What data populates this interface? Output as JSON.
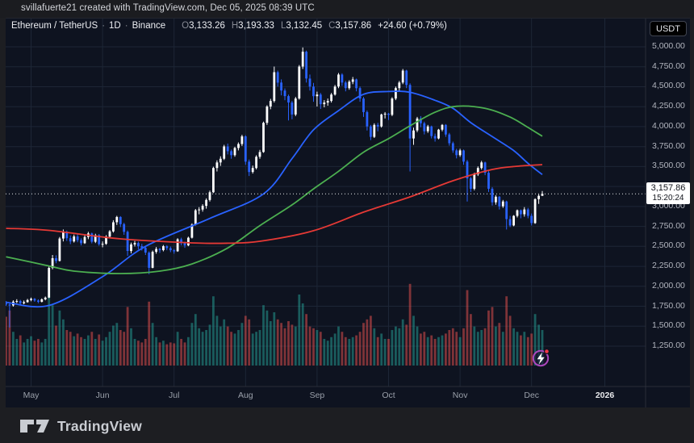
{
  "attribution": {
    "text": "svillafuerte21 created with TradingView.com, Dec 05, 2025 08:39 UTC"
  },
  "legend": {
    "symbol": "Ethereum / TetherUS",
    "separator": "·",
    "interval": "1D",
    "exchange": "Binance",
    "ohlc": [
      {
        "k": "O",
        "v": "3,133.26"
      },
      {
        "k": "H",
        "v": "3,193.33"
      },
      {
        "k": "L",
        "v": "3,132.45"
      },
      {
        "k": "C",
        "v": "3,157.86"
      }
    ],
    "change": "+24.60 (+0.79%)"
  },
  "currency_button": {
    "label": "USDT"
  },
  "price_axis": {
    "labels": [
      "5,000.00",
      "4,750.00",
      "4,500.00",
      "4,250.00",
      "4,000.00",
      "3,750.00",
      "3,500.00",
      "3,250.00",
      "3,000.00",
      "2,750.00",
      "2,500.00",
      "2,250.00",
      "2,000.00",
      "1,750.00",
      "1,500.00",
      "1,250.00"
    ],
    "price_label": {
      "price": "3,157.86",
      "countdown": "15:20:24"
    }
  },
  "time_axis": {
    "ticks": [
      {
        "label": "May",
        "i": 7
      },
      {
        "label": "Jun",
        "i": 27
      },
      {
        "label": "Jul",
        "i": 47
      },
      {
        "label": "Aug",
        "i": 67
      },
      {
        "label": "Sep",
        "i": 87
      },
      {
        "label": "Oct",
        "i": 107
      },
      {
        "label": "Nov",
        "i": 127
      },
      {
        "label": "Dec",
        "i": 147
      },
      {
        "label": "2026",
        "i": 167.5,
        "bold": true
      }
    ]
  },
  "footer": {
    "brand": "TradingView"
  },
  "chart_data": {
    "type": "candlestick",
    "title": "Ethereum / TetherUS 1D Binance",
    "price_range": {
      "min": 1250,
      "max": 5000,
      "step": 250
    },
    "current_price": 3157.86,
    "current_ohlc": {
      "open": 3133.26,
      "high": 3193.33,
      "low": 3132.45,
      "close": 3157.86,
      "change": 24.6,
      "change_pct": 0.79
    },
    "colors": {
      "up": "#ffffff",
      "down": "#2962ff",
      "vol_up": "rgba(38,166,154,0.5)",
      "vol_down": "rgba(239,83,80,0.5)",
      "ma_fast": "#2962ff",
      "ma_mid": "#4caf50",
      "ma_slow": "#e53935",
      "grid": "#1d2636",
      "axis_border": "#2a2e39",
      "price_line": "#e8e9ea",
      "flash_ring": "#ab47bc",
      "flash_dot": "#f23645",
      "background": "#0e1320"
    },
    "candles": [
      [
        1795,
        1815,
        1755,
        1772
      ],
      [
        1772,
        1790,
        1485,
        1760
      ],
      [
        1760,
        1825,
        1745,
        1808
      ],
      [
        1808,
        1838,
        1790,
        1815
      ],
      [
        1815,
        1830,
        1768,
        1788
      ],
      [
        1788,
        1822,
        1775,
        1802
      ],
      [
        1802,
        1842,
        1795,
        1828
      ],
      [
        1828,
        1858,
        1812,
        1843
      ],
      [
        1843,
        1852,
        1806,
        1822
      ],
      [
        1822,
        1836,
        1788,
        1806
      ],
      [
        1806,
        1848,
        1798,
        1836
      ],
      [
        1836,
        1872,
        1824,
        1858
      ],
      [
        1858,
        2248,
        1852,
        2230
      ],
      [
        2230,
        2392,
        2212,
        2352
      ],
      [
        2352,
        2388,
        2288,
        2318
      ],
      [
        2318,
        2618,
        2310,
        2598
      ],
      [
        2598,
        2712,
        2562,
        2682
      ],
      [
        2682,
        2698,
        2568,
        2602
      ],
      [
        2602,
        2638,
        2528,
        2562
      ],
      [
        2562,
        2648,
        2548,
        2625
      ],
      [
        2625,
        2662,
        2552,
        2578
      ],
      [
        2578,
        2602,
        2512,
        2540
      ],
      [
        2540,
        2638,
        2532,
        2618
      ],
      [
        2618,
        2682,
        2590,
        2662
      ],
      [
        2662,
        2672,
        2538,
        2558
      ],
      [
        2558,
        2658,
        2542,
        2640
      ],
      [
        2640,
        2655,
        2508,
        2528
      ],
      [
        2528,
        2562,
        2488,
        2532
      ],
      [
        2532,
        2640,
        2520,
        2622
      ],
      [
        2622,
        2705,
        2602,
        2688
      ],
      [
        2688,
        2828,
        2672,
        2802
      ],
      [
        2802,
        2882,
        2768,
        2868
      ],
      [
        2868,
        2878,
        2742,
        2778
      ],
      [
        2778,
        2795,
        2645,
        2682
      ],
      [
        2682,
        2698,
        2382,
        2442
      ],
      [
        2442,
        2548,
        2412,
        2525
      ],
      [
        2525,
        2568,
        2498,
        2542
      ],
      [
        2542,
        2560,
        2462,
        2502
      ],
      [
        2502,
        2532,
        2448,
        2482
      ],
      [
        2482,
        2502,
        2392,
        2422
      ],
      [
        2422,
        2438,
        2152,
        2232
      ],
      [
        2232,
        2448,
        2225,
        2432
      ],
      [
        2432,
        2492,
        2408,
        2468
      ],
      [
        2468,
        2482,
        2418,
        2452
      ],
      [
        2452,
        2518,
        2438,
        2502
      ],
      [
        2502,
        2515,
        2452,
        2478
      ],
      [
        2478,
        2498,
        2428,
        2452
      ],
      [
        2452,
        2468,
        2408,
        2438
      ],
      [
        2438,
        2602,
        2432,
        2588
      ],
      [
        2588,
        2608,
        2512,
        2542
      ],
      [
        2542,
        2558,
        2482,
        2512
      ],
      [
        2512,
        2622,
        2502,
        2608
      ],
      [
        2608,
        2788,
        2598,
        2772
      ],
      [
        2772,
        2968,
        2762,
        2952
      ],
      [
        2952,
        2992,
        2902,
        2962
      ],
      [
        2962,
        3028,
        2935,
        3008
      ],
      [
        3008,
        3102,
        2972,
        3082
      ],
      [
        3082,
        3198,
        3062,
        3178
      ],
      [
        3178,
        3498,
        3168,
        3482
      ],
      [
        3482,
        3578,
        3438,
        3552
      ],
      [
        3552,
        3628,
        3508,
        3598
      ],
      [
        3598,
        3772,
        3582,
        3752
      ],
      [
        3752,
        3788,
        3652,
        3692
      ],
      [
        3692,
        3712,
        3598,
        3642
      ],
      [
        3642,
        3748,
        3622,
        3732
      ],
      [
        3732,
        3802,
        3702,
        3782
      ],
      [
        3782,
        3898,
        3758,
        3878
      ],
      [
        3878,
        3892,
        3522,
        3562
      ],
      [
        3562,
        3588,
        3382,
        3432
      ],
      [
        3432,
        3512,
        3412,
        3482
      ],
      [
        3482,
        3642,
        3465,
        3622
      ],
      [
        3622,
        3708,
        3598,
        3682
      ],
      [
        3682,
        4062,
        3672,
        4048
      ],
      [
        4048,
        4268,
        4022,
        4252
      ],
      [
        4252,
        4348,
        4218,
        4322
      ],
      [
        4322,
        4752,
        4302,
        4682
      ],
      [
        4682,
        4702,
        4502,
        4552
      ],
      [
        4552,
        4592,
        4392,
        4452
      ],
      [
        4452,
        4478,
        4332,
        4382
      ],
      [
        4382,
        4402,
        4078,
        4302
      ],
      [
        4302,
        4322,
        4092,
        4152
      ],
      [
        4152,
        4372,
        4132,
        4352
      ],
      [
        4352,
        4772,
        4338,
        4752
      ],
      [
        4752,
        4992,
        4722,
        4938
      ],
      [
        4938,
        4952,
        4552,
        4602
      ],
      [
        4602,
        4652,
        4452,
        4502
      ],
      [
        4502,
        4548,
        4312,
        4382
      ],
      [
        4382,
        4438,
        4252,
        4402
      ],
      [
        4402,
        4422,
        4222,
        4282
      ],
      [
        4282,
        4332,
        4242,
        4302
      ],
      [
        4302,
        4352,
        4262,
        4322
      ],
      [
        4322,
        4422,
        4302,
        4402
      ],
      [
        4402,
        4522,
        4388,
        4502
      ],
      [
        4502,
        4672,
        4482,
        4652
      ],
      [
        4652,
        4668,
        4512,
        4552
      ],
      [
        4552,
        4572,
        4442,
        4482
      ],
      [
        4482,
        4582,
        4462,
        4562
      ],
      [
        4562,
        4622,
        4532,
        4592
      ],
      [
        4592,
        4602,
        4442,
        4482
      ],
      [
        4482,
        4502,
        4312,
        4352
      ],
      [
        4352,
        4372,
        4122,
        4182
      ],
      [
        4182,
        4202,
        3952,
        4002
      ],
      [
        4002,
        4022,
        3832,
        3872
      ],
      [
        3872,
        4042,
        3858,
        4022
      ],
      [
        4022,
        4048,
        3942,
        4002
      ],
      [
        4002,
        4162,
        3988,
        4152
      ],
      [
        4152,
        4182,
        4102,
        4162
      ],
      [
        4162,
        4172,
        4082,
        4148
      ],
      [
        4148,
        4368,
        4132,
        4352
      ],
      [
        4352,
        4502,
        4332,
        4482
      ],
      [
        4482,
        4572,
        4442,
        4552
      ],
      [
        4552,
        4722,
        4532,
        4702
      ],
      [
        4702,
        4712,
        4482,
        4522
      ],
      [
        4522,
        4542,
        3438,
        3852
      ],
      [
        3852,
        3988,
        3772,
        3952
      ],
      [
        3952,
        4122,
        3932,
        4102
      ],
      [
        4102,
        4132,
        3992,
        4042
      ],
      [
        4042,
        4062,
        3902,
        3942
      ],
      [
        3942,
        4022,
        3922,
        4002
      ],
      [
        4002,
        4012,
        3852,
        3882
      ],
      [
        3882,
        3912,
        3812,
        3852
      ],
      [
        3852,
        3972,
        3842,
        3962
      ],
      [
        3962,
        4032,
        3942,
        4022
      ],
      [
        4022,
        4032,
        3872,
        3902
      ],
      [
        3902,
        3922,
        3762,
        3792
      ],
      [
        3792,
        3812,
        3672,
        3702
      ],
      [
        3702,
        3722,
        3602,
        3642
      ],
      [
        3642,
        3722,
        3622,
        3702
      ],
      [
        3702,
        3712,
        3522,
        3562
      ],
      [
        3562,
        3582,
        3062,
        3352
      ],
      [
        3352,
        3372,
        3182,
        3222
      ],
      [
        3222,
        3422,
        3202,
        3402
      ],
      [
        3402,
        3502,
        3382,
        3482
      ],
      [
        3482,
        3572,
        3462,
        3552
      ],
      [
        3552,
        3562,
        3392,
        3422
      ],
      [
        3422,
        3442,
        3182,
        3222
      ],
      [
        3222,
        3242,
        3012,
        3052
      ],
      [
        3052,
        3142,
        3022,
        3122
      ],
      [
        3122,
        3132,
        2962,
        3002
      ],
      [
        3002,
        3082,
        2982,
        3062
      ],
      [
        3062,
        3072,
        2712,
        2842
      ],
      [
        2842,
        2882,
        2742,
        2762
      ],
      [
        2762,
        2892,
        2752,
        2882
      ],
      [
        2882,
        2962,
        2862,
        2952
      ],
      [
        2952,
        2962,
        2852,
        2902
      ],
      [
        2902,
        2992,
        2872,
        2962
      ],
      [
        2962,
        2982,
        2852,
        2882
      ],
      [
        2882,
        2912,
        2762,
        2792
      ],
      [
        2792,
        3102,
        2782,
        3092
      ],
      [
        3092,
        3152,
        3032,
        3133
      ],
      [
        3133,
        3193,
        3132,
        3158
      ]
    ],
    "volumes": [
      55,
      62,
      38,
      30,
      34,
      26,
      30,
      33,
      28,
      30,
      26,
      30,
      100,
      68,
      45,
      62,
      52,
      40,
      38,
      33,
      36,
      32,
      30,
      34,
      38,
      30,
      35,
      28,
      32,
      38,
      45,
      48,
      40,
      38,
      66,
      42,
      30,
      28,
      26,
      30,
      72,
      48,
      32,
      26,
      28,
      24,
      26,
      25,
      38,
      30,
      26,
      32,
      48,
      58,
      42,
      38,
      40,
      46,
      78,
      56,
      44,
      52,
      44,
      38,
      36,
      40,
      48,
      56,
      52,
      36,
      38,
      40,
      68,
      62,
      50,
      60,
      52,
      48,
      42,
      50,
      46,
      44,
      80,
      70,
      58,
      44,
      42,
      40,
      38,
      30,
      28,
      32,
      36,
      44,
      38,
      32,
      30,
      32,
      34,
      38,
      48,
      52,
      56,
      42,
      32,
      36,
      30,
      30,
      40,
      44,
      42,
      52,
      46,
      92,
      56,
      44,
      36,
      38,
      32,
      34,
      30,
      32,
      34,
      36,
      40,
      42,
      38,
      32,
      42,
      85,
      58,
      44,
      38,
      40,
      42,
      62,
      66,
      44,
      48,
      38,
      78,
      56,
      42,
      38,
      34,
      38,
      32,
      36,
      58,
      46,
      40
    ],
    "ma_lines": [
      {
        "name": "ma-fast-blue",
        "color_key": "ma_fast",
        "points": [
          [
            0,
            1800
          ],
          [
            12,
            1760
          ],
          [
            27,
            2120
          ],
          [
            39,
            2500
          ],
          [
            57,
            2850
          ],
          [
            72,
            3157
          ],
          [
            80,
            3600
          ],
          [
            86,
            3960
          ],
          [
            93,
            4200
          ],
          [
            100,
            4405
          ],
          [
            107,
            4440
          ],
          [
            113,
            4430
          ],
          [
            120,
            4330
          ],
          [
            125,
            4230
          ],
          [
            130,
            4050
          ],
          [
            136,
            3875
          ],
          [
            142,
            3700
          ],
          [
            146,
            3540
          ],
          [
            150,
            3400
          ]
        ]
      },
      {
        "name": "ma-mid-green",
        "color_key": "ma_mid",
        "points": [
          [
            0,
            2370
          ],
          [
            12,
            2255
          ],
          [
            19,
            2190
          ],
          [
            32,
            2160
          ],
          [
            43,
            2190
          ],
          [
            52,
            2280
          ],
          [
            62,
            2480
          ],
          [
            71,
            2760
          ],
          [
            80,
            3020
          ],
          [
            86,
            3220
          ],
          [
            93,
            3440
          ],
          [
            100,
            3680
          ],
          [
            107,
            3850
          ],
          [
            113,
            4010
          ],
          [
            120,
            4180
          ],
          [
            126,
            4255
          ],
          [
            134,
            4230
          ],
          [
            141,
            4120
          ],
          [
            146,
            3990
          ],
          [
            150,
            3880
          ]
        ]
      },
      {
        "name": "ma-slow-red",
        "color_key": "ma_slow",
        "points": [
          [
            0,
            2726
          ],
          [
            12,
            2700
          ],
          [
            32,
            2594
          ],
          [
            52,
            2544
          ],
          [
            62,
            2540
          ],
          [
            71,
            2564
          ],
          [
            86,
            2696
          ],
          [
            100,
            2929
          ],
          [
            113,
            3120
          ],
          [
            125,
            3322
          ],
          [
            136,
            3464
          ],
          [
            143,
            3504
          ],
          [
            150,
            3524
          ]
        ]
      }
    ]
  }
}
